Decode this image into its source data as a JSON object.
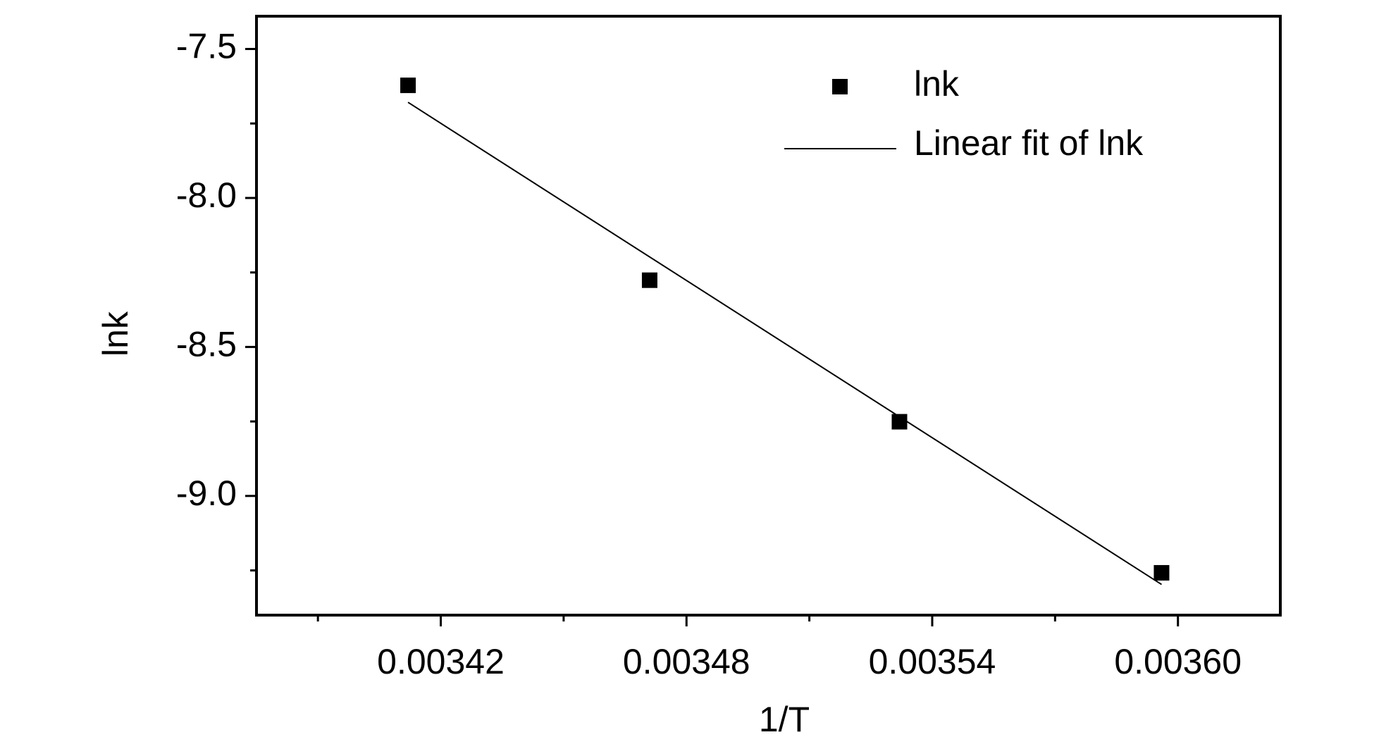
{
  "chart_data": {
    "type": "scatter",
    "xlabel": "1/T",
    "ylabel": "lnk",
    "xlim": [
      0.003375,
      0.003625
    ],
    "ylim": [
      -9.4,
      -7.39
    ],
    "xticks": [
      0.00342,
      0.00348,
      0.00354,
      {
        "value": 0.0036,
        "label": "0.00360"
      }
    ],
    "xminorticks": [
      0.00339,
      0.00345,
      0.00351,
      0.00357
    ],
    "yticks": [
      -7.5,
      {
        "value": -8,
        "label": "-8.0"
      },
      -8.5,
      {
        "value": -9,
        "label": "-9.0"
      }
    ],
    "yminorticks": [
      -7.75,
      -8.25,
      -8.75,
      -9.25
    ],
    "legend": "top-right",
    "series": [
      {
        "name": "lnk",
        "kind": "scatter",
        "color": "#000000",
        "x": [
          0.003412,
          0.003471,
          0.003532,
          0.003596
        ],
        "values": [
          -7.622,
          -8.276,
          -8.751,
          -9.258
        ]
      },
      {
        "name": "Linear fit of lnk",
        "kind": "line",
        "color": "#000000",
        "x": [
          0.003412,
          0.003596
        ],
        "values": [
          -7.679,
          -9.297
        ]
      }
    ]
  }
}
